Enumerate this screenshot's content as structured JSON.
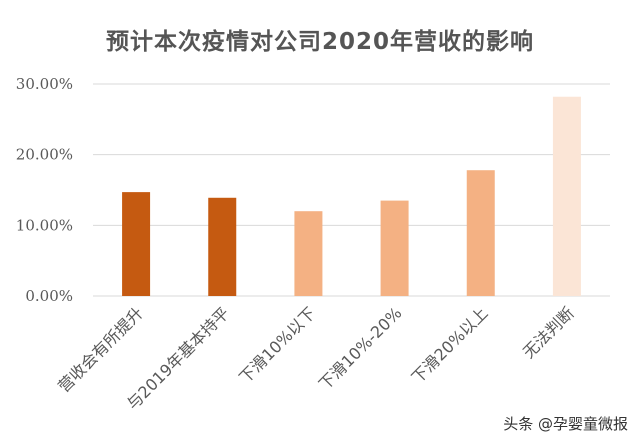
{
  "chart_data": {
    "type": "bar",
    "title": "预计本次疫情对公司2020年营收的影响",
    "categories": [
      "营收会有所提升",
      "与2019年基本持平",
      "下滑10%以下",
      "下滑10%-20%",
      "下滑20%以上",
      "无法判断"
    ],
    "values": [
      14.7,
      13.9,
      12.0,
      13.5,
      17.8,
      28.2
    ],
    "colors": [
      "#C55A11",
      "#C55A11",
      "#F4B183",
      "#F4B183",
      "#F4B183",
      "#FBE5D6"
    ],
    "y_tick_labels": [
      "0.00%",
      "10.00%",
      "20.00%",
      "30.00%"
    ],
    "ylim": [
      0,
      30
    ],
    "xlabel": "",
    "ylabel": "",
    "grid": true
  },
  "watermark": {
    "text": "头条 @孕婴童微报"
  }
}
